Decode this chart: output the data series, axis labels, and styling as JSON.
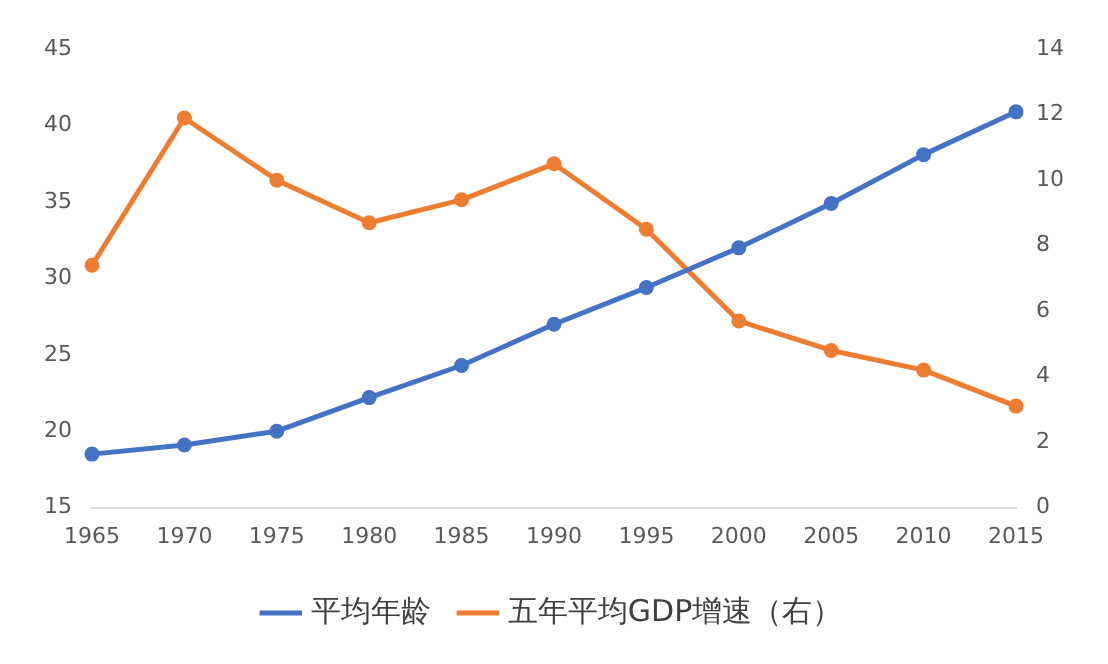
{
  "chart_data": {
    "type": "line",
    "categories": [
      "1965",
      "1970",
      "1975",
      "1980",
      "1985",
      "1990",
      "1995",
      "2000",
      "2005",
      "2010",
      "2015"
    ],
    "series": [
      {
        "name": "平均年龄",
        "color": "#4472c4",
        "values": [
          18.5,
          19.1,
          20.0,
          22.2,
          24.3,
          27.0,
          29.4,
          32.0,
          34.9,
          38.1,
          40.9
        ]
      },
      {
        "name": "五年平均GDP增速（右）",
        "color": "#ed7d31",
        "axis": "y2",
        "values": [
          7.4,
          11.9,
          10.0,
          8.7,
          9.4,
          10.5,
          8.5,
          5.7,
          4.8,
          4.2,
          3.1
        ]
      }
    ],
    "ylim": [
      15,
      45
    ],
    "yticks": [
      15,
      20,
      25,
      30,
      35,
      40,
      45
    ],
    "y2lim": [
      0,
      14
    ],
    "y2ticks": [
      0,
      2,
      4,
      6,
      8,
      10,
      12,
      14
    ],
    "grid": false,
    "legend": "bottom",
    "marker": "circle",
    "line_style": "solid"
  }
}
